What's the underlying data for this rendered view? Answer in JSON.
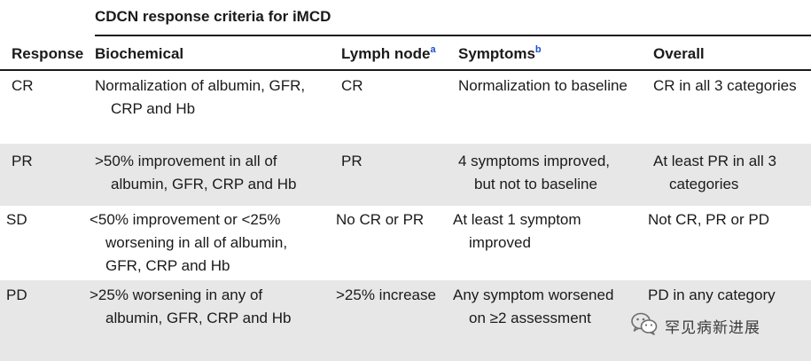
{
  "table": {
    "title": "CDCN response criteria for iMCD",
    "headers": {
      "response": "Response",
      "biochemical": "Biochemical",
      "lymph_node": "Lymph node",
      "lymph_node_sup": "a",
      "symptoms": "Symptoms",
      "symptoms_sup": "b",
      "overall": "Overall"
    },
    "rows": [
      {
        "response": "CR",
        "biochemical": [
          "Normalization of albumin, GFR,",
          "CRP and Hb"
        ],
        "lymph_node": "CR",
        "symptoms": [
          "Normalization to baseline"
        ],
        "overall": [
          "CR in all 3 categories"
        ]
      },
      {
        "response": "PR",
        "biochemical": [
          ">50% improvement in all of",
          "albumin, GFR, CRP and Hb"
        ],
        "lymph_node": "PR",
        "symptoms": [
          "4 symptoms improved,",
          "but not to baseline"
        ],
        "overall": [
          "At least PR in all 3",
          "categories"
        ]
      },
      {
        "response": "SD",
        "biochemical": [
          "<50% improvement or <25%",
          "worsening in all of albumin,",
          "GFR, CRP and Hb"
        ],
        "lymph_node": "No CR or PR",
        "symptoms": [
          "At least 1 symptom",
          "improved"
        ],
        "overall": [
          "Not CR, PR or PD"
        ]
      },
      {
        "response": "PD",
        "biochemical": [
          ">25% worsening in any of",
          "albumin, GFR, CRP and Hb"
        ],
        "lymph_node": ">25% increase",
        "symptoms": [
          "Any symptom worsened",
          "on ≥2 assessment"
        ],
        "overall": [
          "PD in any category"
        ]
      }
    ]
  },
  "watermark": {
    "text": "罕见病新进展",
    "icon": "wechat-icon"
  }
}
